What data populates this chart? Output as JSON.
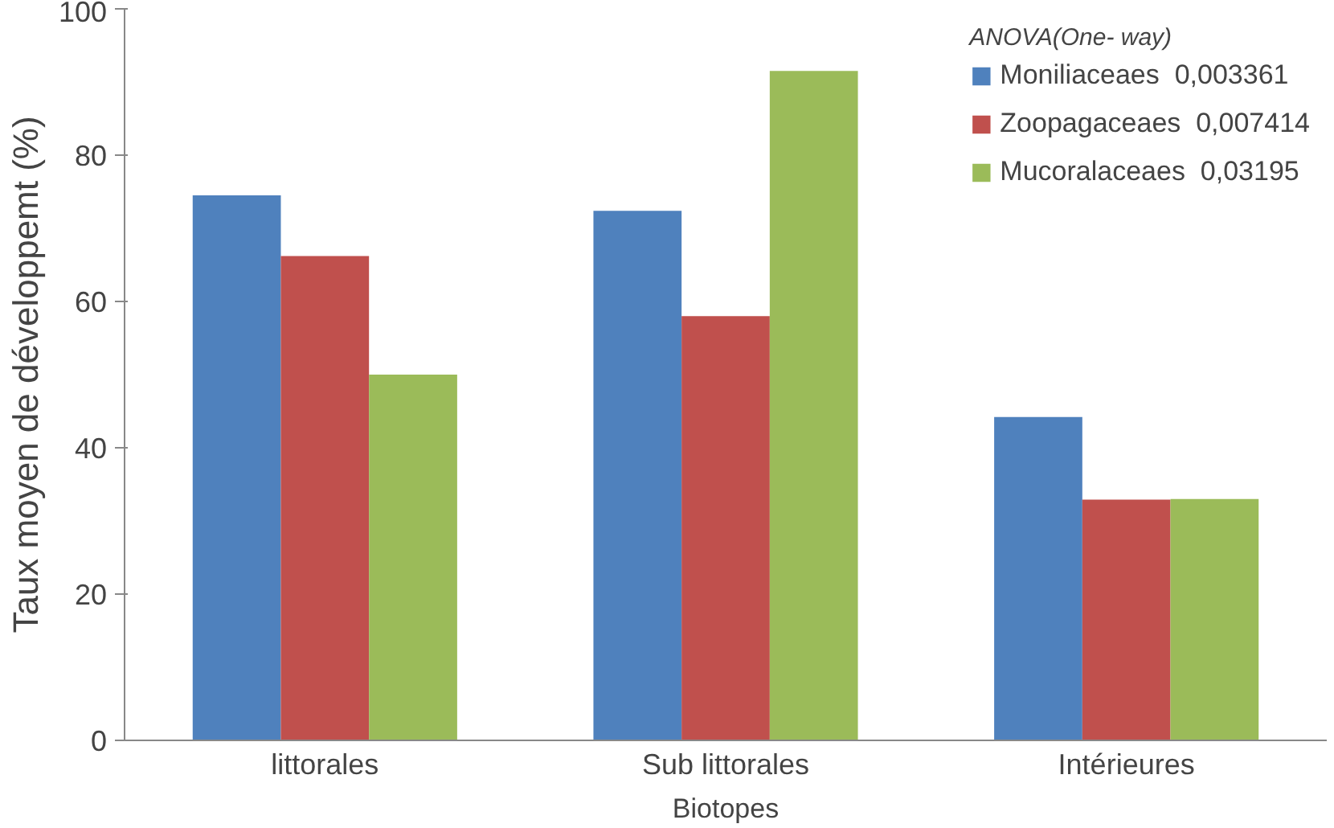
{
  "chart_data": {
    "type": "bar",
    "xlabel": "Biotopes",
    "ylabel": "Taux moyen de développemt (%)",
    "legend_title": "ANOVA(One- way)",
    "categories": [
      "littorales",
      "Sub littorales",
      "Intérieures"
    ],
    "series": [
      {
        "name": "Moniliaceaes  0,003361",
        "color": "#4f81bd",
        "values": [
          74.5,
          72.4,
          44.2
        ]
      },
      {
        "name": "Zoopagaceaes  0,007414",
        "color": "#c0504d",
        "values": [
          66.2,
          58.0,
          32.9
        ]
      },
      {
        "name": "Mucoralaceaes  0,03195",
        "color": "#9bbb59",
        "values": [
          50.0,
          91.5,
          33.0
        ]
      }
    ],
    "ylim": [
      0,
      100
    ],
    "yticks": [
      0,
      20,
      40,
      60,
      80,
      100
    ],
    "grid": false,
    "legend": "top right"
  }
}
